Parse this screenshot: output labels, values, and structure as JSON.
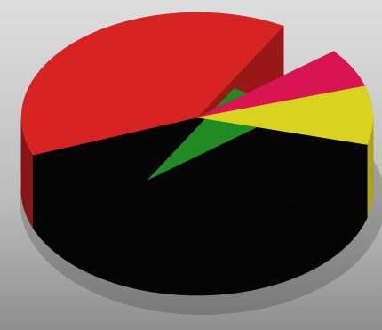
{
  "background": {
    "colors": [
      "#dedede",
      "#bdbdbd",
      "#8f8f8f"
    ]
  },
  "chart_data": {
    "type": "pie",
    "style": "3d-exploded",
    "title": "",
    "grid": false,
    "legend": "none",
    "slices": [
      {
        "color": "#050505",
        "side_color": "#050505",
        "value": 40,
        "exploded": false
      },
      {
        "color": "#d82323",
        "side_color": "#a91b1b",
        "value": 39,
        "exploded": false
      },
      {
        "color": "#228a22",
        "side_color": "#196f19",
        "value": 6,
        "exploded": true
      },
      {
        "color": "#d81552",
        "side_color": "#a20f3c",
        "value": 6,
        "exploded": false
      },
      {
        "color": "#d9d21f",
        "side_color": "#b8ad15",
        "value": 9,
        "exploded": false
      }
    ]
  }
}
